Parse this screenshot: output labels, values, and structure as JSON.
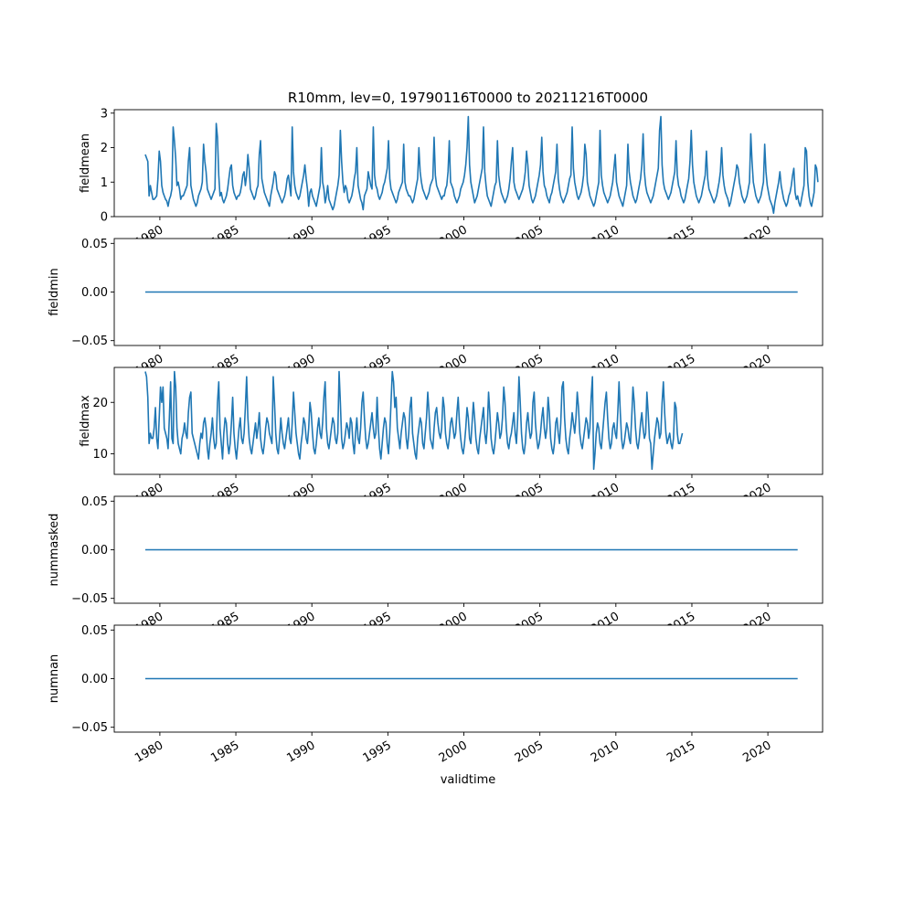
{
  "figure": {
    "title": "R10mm, lev=0, 19790116T0000 to 20211216T0000",
    "xlabel": "validtime",
    "line_color": "#1f77b4"
  },
  "chart_data": [
    {
      "type": "line",
      "ylabel": "fieldmean",
      "xlim": [
        1977.0,
        2023.6
      ],
      "ylim": [
        0.0,
        3.1
      ],
      "yticks": [
        0,
        1,
        2,
        3
      ],
      "ytick_labels": [
        "0",
        "1",
        "2",
        "3"
      ],
      "xticks": [
        1980,
        1985,
        1990,
        1995,
        2000,
        2005,
        2010,
        2015,
        2020
      ],
      "xtick_labels": [
        "1980",
        "1985",
        "1990",
        "1995",
        "2000",
        "2005",
        "2010",
        "2015",
        "2020"
      ],
      "x_start": "1979-01",
      "x_step": "monthly",
      "values": [
        1.8,
        1.7,
        1.6,
        0.6,
        0.9,
        0.7,
        0.5,
        0.5,
        0.55,
        0.6,
        1.1,
        1.9,
        1.6,
        0.9,
        0.7,
        0.6,
        0.5,
        0.45,
        0.3,
        0.5,
        0.6,
        0.8,
        2.6,
        2.2,
        1.7,
        0.9,
        1.0,
        0.8,
        0.5,
        0.6,
        0.6,
        0.7,
        0.8,
        0.9,
        1.6,
        2.0,
        0.9,
        0.7,
        0.5,
        0.4,
        0.3,
        0.4,
        0.6,
        0.7,
        0.8,
        1.0,
        2.1,
        1.6,
        1.3,
        0.8,
        0.7,
        0.6,
        0.5,
        0.6,
        0.7,
        0.8,
        2.7,
        2.3,
        1.2,
        0.6,
        0.7,
        0.5,
        0.4,
        0.5,
        0.6,
        0.8,
        1.1,
        1.4,
        1.5,
        0.9,
        0.7,
        0.6,
        0.5,
        0.6,
        0.6,
        0.7,
        0.9,
        1.2,
        1.3,
        0.9,
        1.2,
        1.8,
        1.4,
        0.8,
        0.7,
        0.6,
        0.5,
        0.6,
        0.8,
        0.9,
        1.8,
        2.2,
        1.1,
        0.9,
        0.7,
        0.6,
        0.5,
        0.4,
        0.3,
        0.6,
        0.8,
        1.0,
        1.3,
        1.2,
        0.8,
        0.7,
        0.6,
        0.5,
        0.4,
        0.5,
        0.6,
        0.8,
        1.1,
        1.2,
        0.9,
        0.6,
        2.6,
        1.3,
        0.9,
        0.7,
        0.6,
        0.5,
        0.6,
        0.8,
        1.0,
        1.2,
        1.5,
        1.1,
        0.8,
        0.3,
        0.7,
        0.8,
        0.6,
        0.5,
        0.4,
        0.3,
        0.5,
        0.7,
        0.9,
        2.0,
        1.0,
        0.8,
        0.4,
        0.6,
        0.9,
        0.5,
        0.4,
        0.3,
        0.2,
        0.3,
        0.5,
        0.7,
        0.9,
        1.2,
        2.5,
        1.6,
        1.0,
        0.7,
        0.9,
        0.8,
        0.5,
        0.4,
        0.5,
        0.6,
        0.8,
        1.1,
        1.3,
        2.0,
        0.9,
        0.7,
        0.5,
        0.4,
        0.2,
        0.6,
        0.7,
        0.8,
        1.3,
        1.1,
        0.9,
        0.8,
        2.6,
        1.2,
        0.9,
        0.8,
        0.6,
        0.5,
        0.6,
        0.7,
        0.9,
        1.0,
        1.2,
        1.4,
        2.2,
        1.1,
        0.8,
        0.7,
        0.6,
        0.5,
        0.4,
        0.5,
        0.7,
        0.8,
        0.9,
        1.0,
        2.1,
        1.0,
        0.8,
        0.7,
        0.6,
        0.6,
        0.5,
        0.4,
        0.5,
        0.7,
        0.9,
        1.1,
        2.0,
        1.3,
        1.0,
        0.8,
        0.7,
        0.6,
        0.5,
        0.6,
        0.7,
        0.9,
        1.0,
        1.1,
        2.3,
        1.2,
        0.9,
        0.8,
        0.7,
        0.6,
        0.5,
        0.6,
        0.6,
        0.8,
        0.9,
        1.3,
        2.2,
        1.0,
        0.9,
        0.8,
        0.6,
        0.5,
        0.4,
        0.5,
        0.6,
        0.8,
        0.9,
        1.0,
        1.2,
        1.5,
        2.0,
        2.9,
        1.5,
        1.0,
        0.8,
        0.6,
        0.4,
        0.5,
        0.6,
        0.8,
        1.0,
        1.2,
        1.4,
        2.6,
        1.3,
        0.9,
        0.6,
        0.5,
        0.4,
        0.3,
        0.5,
        0.7,
        0.9,
        1.0,
        2.2,
        1.2,
        0.9,
        0.7,
        0.6,
        0.5,
        0.4,
        0.5,
        0.6,
        0.8,
        1.1,
        1.6,
        2.0,
        1.0,
        0.8,
        0.7,
        0.6,
        0.5,
        0.6,
        0.7,
        0.8,
        1.0,
        1.3,
        1.9,
        1.5,
        0.9,
        0.7,
        0.5,
        0.4,
        0.5,
        0.6,
        0.8,
        1.0,
        1.2,
        1.5,
        2.3,
        1.3,
        0.9,
        0.8,
        0.6,
        0.5,
        0.4,
        0.6,
        0.7,
        0.9,
        1.1,
        1.3,
        2.1,
        1.1,
        0.8,
        0.6,
        0.5,
        0.4,
        0.5,
        0.6,
        0.7,
        0.9,
        1.1,
        1.2,
        2.6,
        1.4,
        1.0,
        0.8,
        0.6,
        0.5,
        0.6,
        0.7,
        0.9,
        1.2,
        2.1,
        1.8,
        1.0,
        0.8,
        0.6,
        0.5,
        0.4,
        0.3,
        0.4,
        0.6,
        0.8,
        1.0,
        2.5,
        1.2,
        0.9,
        0.7,
        0.6,
        0.5,
        0.4,
        0.5,
        0.6,
        0.8,
        1.0,
        1.4,
        1.8,
        1.0,
        0.8,
        0.6,
        0.5,
        0.4,
        0.3,
        0.5,
        0.7,
        0.9,
        2.1,
        1.3,
        1.0,
        0.8,
        0.6,
        0.5,
        0.4,
        0.5,
        0.7,
        0.9,
        1.1,
        1.5,
        2.4,
        1.3,
        0.9,
        0.7,
        0.6,
        0.5,
        0.4,
        0.5,
        0.6,
        0.8,
        1.0,
        1.2,
        1.4,
        2.5,
        2.9,
        1.5,
        1.0,
        0.8,
        0.7,
        0.6,
        0.5,
        0.6,
        0.7,
        0.9,
        1.1,
        1.3,
        2.2,
        1.2,
        0.9,
        0.8,
        0.6,
        0.5,
        0.4,
        0.5,
        0.7,
        0.9,
        1.1,
        1.6,
        2.5,
        1.5,
        1.0,
        0.8,
        0.6,
        0.5,
        0.4,
        0.5,
        0.6,
        0.8,
        1.0,
        1.2,
        1.9,
        1.1,
        0.8,
        0.7,
        0.6,
        0.5,
        0.4,
        0.5,
        0.6,
        0.8,
        1.0,
        1.3,
        2.0,
        1.2,
        0.9,
        0.7,
        0.6,
        0.5,
        0.3,
        0.4,
        0.6,
        0.8,
        1.0,
        1.2,
        1.5,
        1.4,
        1.0,
        0.8,
        0.6,
        0.5,
        0.4,
        0.5,
        0.6,
        0.8,
        1.0,
        2.4,
        1.6,
        1.0,
        0.8,
        0.6,
        0.5,
        0.4,
        0.5,
        0.6,
        0.8,
        1.0,
        2.1,
        1.3,
        0.9,
        0.7,
        0.5,
        0.4,
        0.3,
        0.1,
        0.4,
        0.6,
        0.8,
        1.0,
        1.3,
        0.9,
        0.7,
        0.5,
        0.4,
        0.3,
        0.4,
        0.6,
        0.7,
        0.9,
        1.2,
        1.4,
        0.7,
        0.5,
        0.6,
        0.4,
        0.3,
        0.5,
        0.7,
        0.9,
        2.0,
        1.9,
        1.0,
        0.6,
        0.4,
        0.3,
        0.5,
        0.7,
        1.5,
        1.4,
        1.0
      ]
    },
    {
      "type": "line",
      "ylabel": "fieldmin",
      "xlim": [
        1977.0,
        2023.6
      ],
      "ylim": [
        -0.055,
        0.055
      ],
      "yticks": [
        -0.05,
        0.0,
        0.05
      ],
      "ytick_labels": [
        "−0.05",
        "0.00",
        "0.05"
      ],
      "xticks": [
        1980,
        1985,
        1990,
        1995,
        2000,
        2005,
        2010,
        2015,
        2020
      ],
      "xtick_labels": [
        "1980",
        "1985",
        "1990",
        "1995",
        "2000",
        "2005",
        "2010",
        "2015",
        "2020"
      ],
      "x_start": "1979-01",
      "x_step": "monthly",
      "constant": 0.0
    },
    {
      "type": "line",
      "ylabel": "fieldmax",
      "xlim": [
        1977.0,
        2023.6
      ],
      "ylim": [
        6.0,
        26.8
      ],
      "yticks": [
        10,
        20
      ],
      "ytick_labels": [
        "10",
        "20"
      ],
      "xticks": [
        1980,
        1985,
        1990,
        1995,
        2000,
        2005,
        2010,
        2015,
        2020
      ],
      "xtick_labels": [
        "1980",
        "1985",
        "1990",
        "1995",
        "2000",
        "2005",
        "2010",
        "2015",
        "2020"
      ],
      "x_start": "1979-01",
      "x_step": "monthly",
      "values": [
        26,
        25,
        21,
        12,
        14,
        13,
        13,
        15,
        19,
        13,
        11,
        17,
        23,
        20,
        23,
        15,
        14,
        13,
        11,
        17,
        24,
        13,
        12,
        26,
        23,
        15,
        12,
        11,
        10,
        13,
        14,
        16,
        14,
        13,
        18,
        21,
        22,
        14,
        13,
        12,
        11,
        10,
        9,
        12,
        14,
        13,
        16,
        17,
        15,
        11,
        9,
        12,
        14,
        17,
        13,
        11,
        12,
        20,
        24,
        15,
        12,
        9,
        14,
        17,
        16,
        12,
        10,
        12,
        16,
        21,
        14,
        11,
        9,
        12,
        15,
        17,
        13,
        12,
        14,
        19,
        25,
        17,
        13,
        11,
        10,
        12,
        14,
        16,
        13,
        15,
        18,
        13,
        11,
        10,
        12,
        15,
        17,
        16,
        14,
        13,
        12,
        25,
        20,
        14,
        11,
        10,
        13,
        17,
        14,
        12,
        11,
        13,
        15,
        17,
        13,
        12,
        16,
        22,
        18,
        14,
        12,
        10,
        9,
        12,
        14,
        17,
        16,
        13,
        12,
        15,
        20,
        18,
        14,
        11,
        10,
        12,
        15,
        17,
        14,
        13,
        16,
        21,
        24,
        15,
        12,
        11,
        13,
        15,
        17,
        16,
        13,
        12,
        14,
        26,
        20,
        13,
        11,
        12,
        14,
        16,
        15,
        13,
        17,
        16,
        12,
        10,
        14,
        17,
        13,
        12,
        15,
        20,
        22,
        17,
        13,
        11,
        12,
        14,
        16,
        18,
        15,
        13,
        14,
        21,
        15,
        11,
        9,
        12,
        15,
        17,
        16,
        12,
        10,
        14,
        20,
        26,
        24,
        19,
        21,
        15,
        13,
        11,
        14,
        16,
        18,
        17,
        13,
        11,
        14,
        19,
        21,
        14,
        12,
        10,
        9,
        13,
        15,
        17,
        16,
        12,
        11,
        14,
        17,
        22,
        18,
        13,
        12,
        11,
        15,
        18,
        19,
        16,
        14,
        13,
        15,
        21,
        19,
        14,
        12,
        11,
        13,
        16,
        17,
        15,
        13,
        14,
        18,
        21,
        16,
        13,
        11,
        10,
        12,
        15,
        19,
        17,
        13,
        12,
        16,
        20,
        17,
        13,
        11,
        10,
        13,
        15,
        17,
        19,
        14,
        12,
        15,
        22,
        18,
        13,
        11,
        10,
        12,
        15,
        18,
        16,
        13,
        14,
        17,
        23,
        20,
        15,
        12,
        11,
        13,
        14,
        16,
        18,
        14,
        12,
        17,
        25,
        20,
        14,
        11,
        10,
        12,
        16,
        18,
        15,
        13,
        14,
        20,
        22,
        16,
        13,
        11,
        12,
        14,
        17,
        19,
        15,
        13,
        15,
        21,
        18,
        13,
        11,
        10,
        12,
        16,
        17,
        14,
        12,
        16,
        23,
        24,
        17,
        13,
        11,
        10,
        13,
        15,
        18,
        16,
        14,
        17,
        22,
        19,
        14,
        12,
        11,
        13,
        15,
        17,
        16,
        13,
        15,
        21,
        25,
        7,
        10,
        14,
        16,
        15,
        12,
        11,
        14,
        17,
        20,
        22,
        17,
        13,
        11,
        12,
        15,
        16,
        14,
        13,
        18,
        24,
        18,
        13,
        11,
        12,
        14,
        16,
        15,
        13,
        12,
        17,
        23,
        20,
        15,
        12,
        11,
        13,
        16,
        18,
        15,
        13,
        14,
        22,
        18,
        13,
        12,
        7,
        10,
        13,
        15,
        17,
        16,
        13,
        14,
        20,
        24,
        18,
        14,
        12,
        13,
        14,
        12,
        11,
        13,
        20,
        19,
        14,
        12,
        12,
        13,
        14
      ]
    },
    {
      "type": "line",
      "ylabel": "nummasked",
      "xlim": [
        1977.0,
        2023.6
      ],
      "ylim": [
        -0.055,
        0.055
      ],
      "yticks": [
        -0.05,
        0.0,
        0.05
      ],
      "ytick_labels": [
        "−0.05",
        "0.00",
        "0.05"
      ],
      "xticks": [
        1980,
        1985,
        1990,
        1995,
        2000,
        2005,
        2010,
        2015,
        2020
      ],
      "xtick_labels": [
        "1980",
        "1985",
        "1990",
        "1995",
        "2000",
        "2005",
        "2010",
        "2015",
        "2020"
      ],
      "x_start": "1979-01",
      "x_step": "monthly",
      "constant": 0.0
    },
    {
      "type": "line",
      "ylabel": "numnan",
      "xlim": [
        1977.0,
        2023.6
      ],
      "ylim": [
        -0.055,
        0.055
      ],
      "yticks": [
        -0.05,
        0.0,
        0.05
      ],
      "ytick_labels": [
        "−0.05",
        "0.00",
        "0.05"
      ],
      "xticks": [
        1980,
        1985,
        1990,
        1995,
        2000,
        2005,
        2010,
        2015,
        2020
      ],
      "xtick_labels": [
        "1980",
        "1985",
        "1990",
        "1995",
        "2000",
        "2005",
        "2010",
        "2015",
        "2020"
      ],
      "x_start": "1979-01",
      "x_step": "monthly",
      "constant": 0.0
    }
  ]
}
